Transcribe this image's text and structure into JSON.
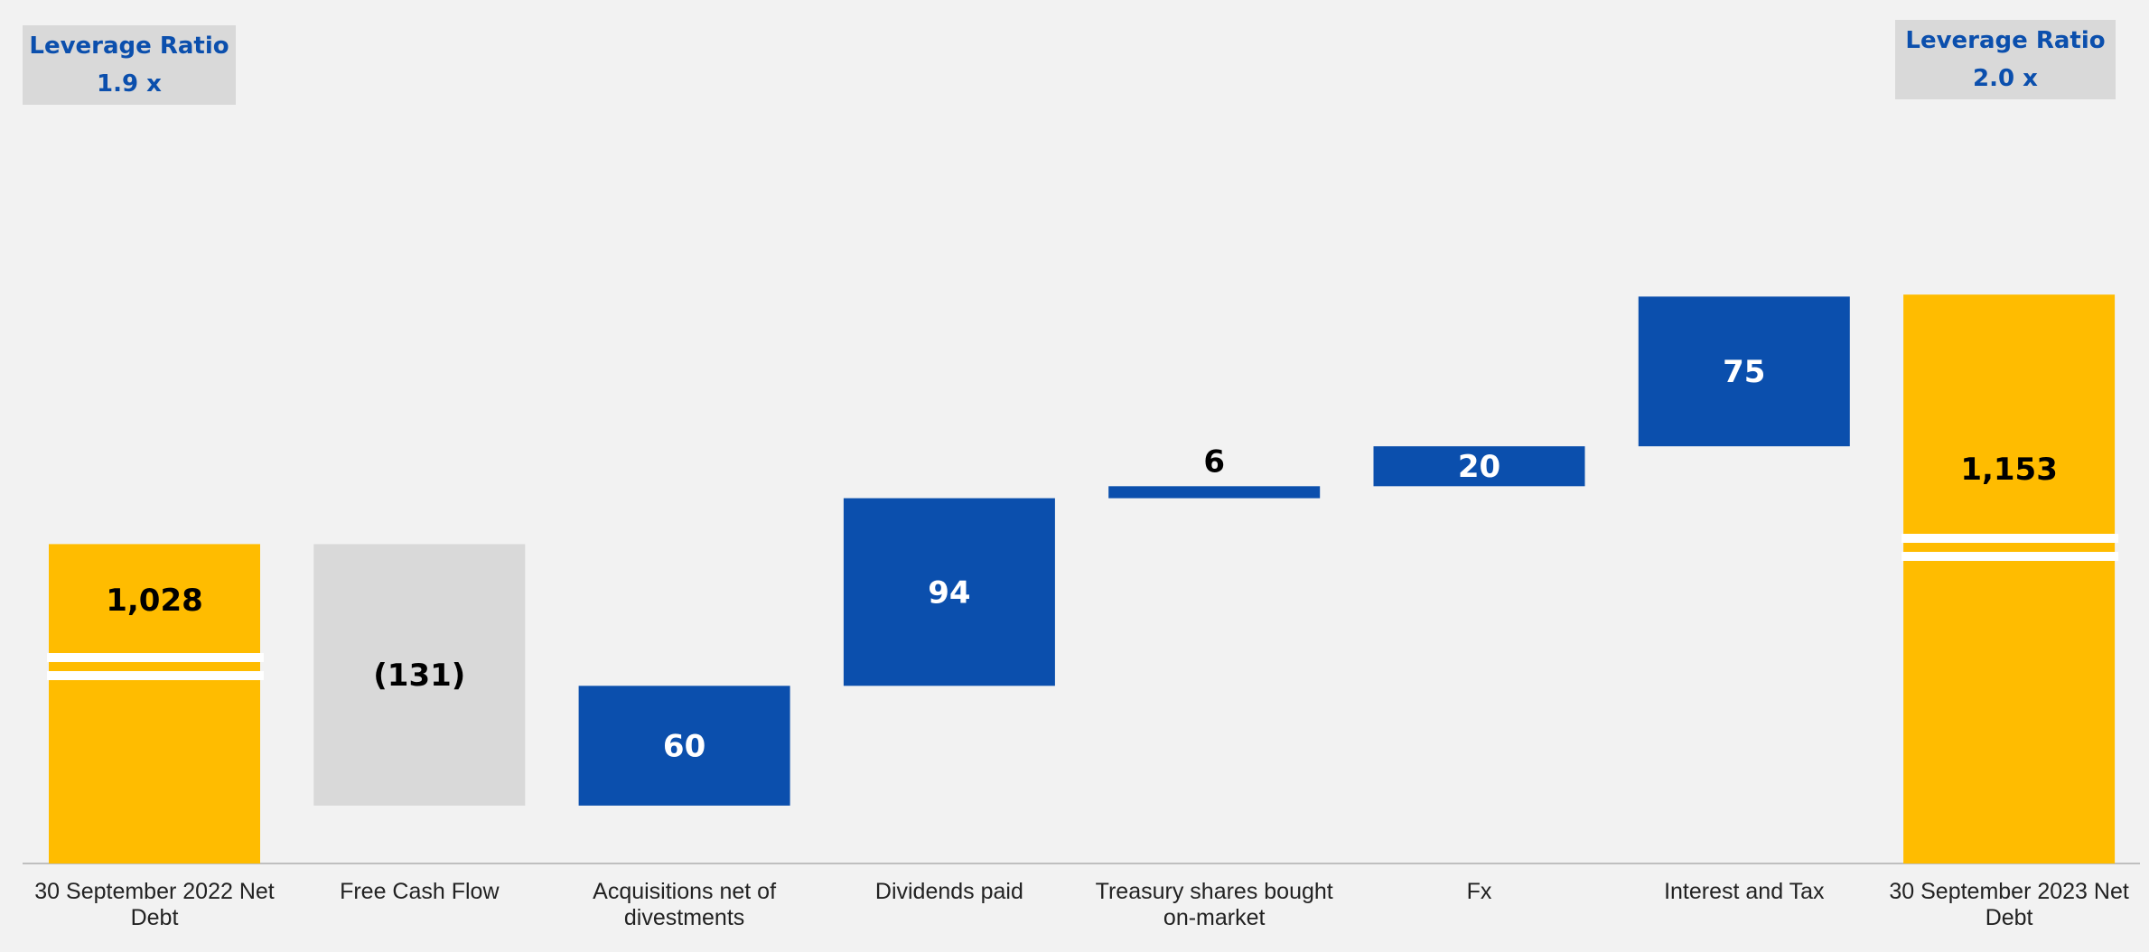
{
  "leverage_left": {
    "title": "Leverage Ratio",
    "value": "1.9 x"
  },
  "leverage_right": {
    "title": "Leverage Ratio",
    "value": "2.0 x"
  },
  "chart_data": {
    "type": "bar",
    "subtype": "waterfall",
    "title": "",
    "xlabel": "",
    "ylabel": "",
    "categories": [
      [
        "30 September 2022 Net",
        "Debt"
      ],
      [
        "Free Cash Flow"
      ],
      [
        "Acquisitions net of",
        "divestments"
      ],
      [
        "Dividends paid"
      ],
      [
        "Treasury shares bought",
        "on-market"
      ],
      [
        "Fx"
      ],
      [
        "Interest and Tax"
      ],
      [
        "30 September 2023 Net",
        "Debt"
      ]
    ],
    "values": [
      1028,
      -131,
      60,
      94,
      6,
      20,
      75,
      1153
    ],
    "labels": [
      "1,028",
      "(131)",
      "60",
      "94",
      "6",
      "20",
      "75",
      "1,153"
    ],
    "kinds": [
      "total",
      "decrease",
      "increase",
      "increase",
      "increase",
      "increase",
      "increase",
      "total"
    ],
    "axis_break": true,
    "colors": {
      "total": "#ffbc00",
      "increase": "#0b4fad",
      "decrease": "#d9d9d9",
      "background": "#f2f2f2",
      "axis": "#bfbfbf"
    }
  }
}
